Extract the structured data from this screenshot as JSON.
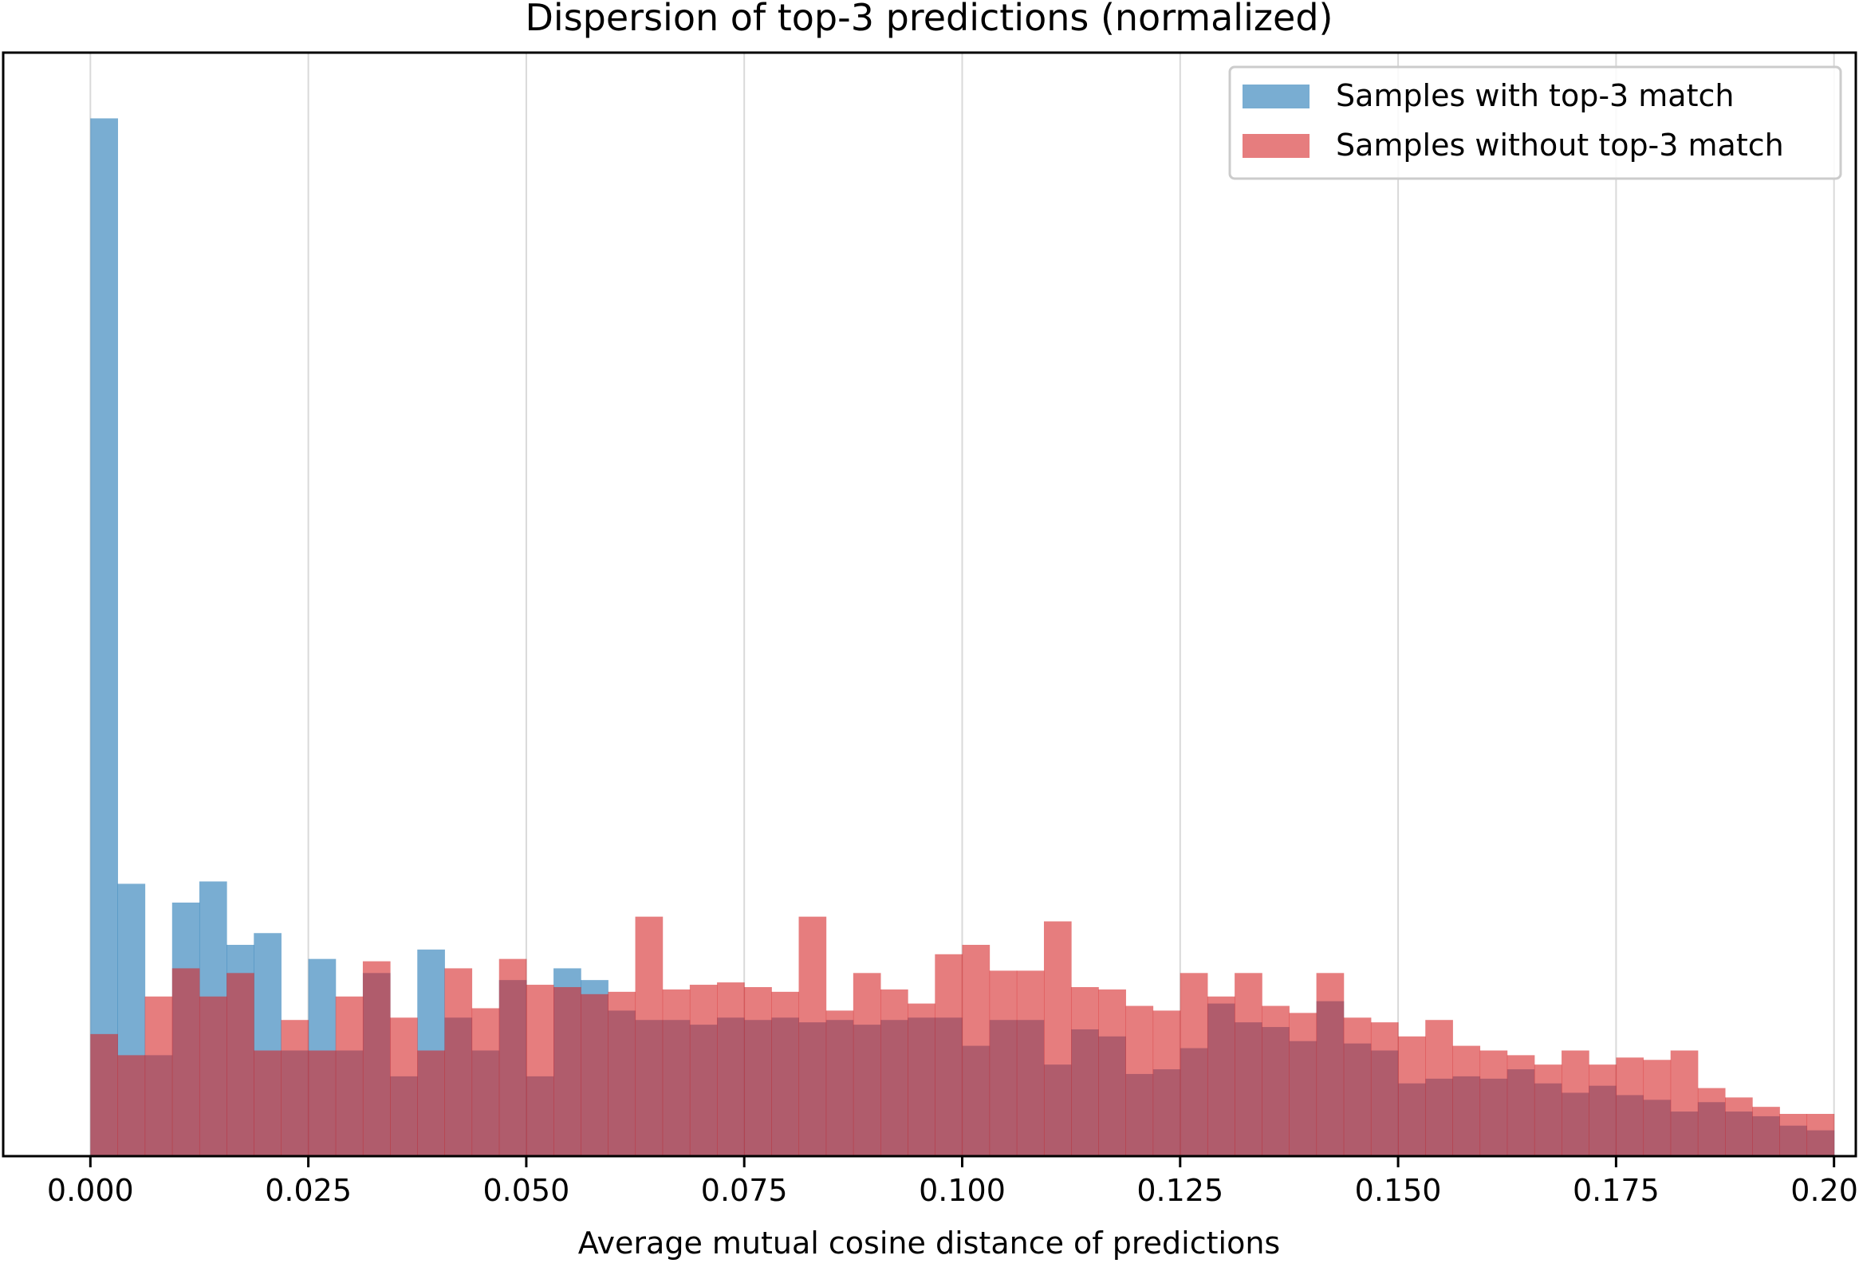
{
  "chart_data": {
    "type": "histogram",
    "title": "Dispersion of top-3 predictions (normalized)",
    "xlabel": "Average mutual cosine distance of predictions",
    "ylabel": "",
    "xlim": [
      -0.01,
      0.2025
    ],
    "ylim": [
      0,
      47
    ],
    "x_ticks": [
      "0.000",
      "0.025",
      "0.050",
      "0.075",
      "0.100",
      "0.125",
      "0.150",
      "0.175",
      "0.200"
    ],
    "y_ticks_visible": false,
    "grid": "vertical",
    "legend_position": "top-right",
    "bin_start": 0.0,
    "bin_width": 0.003125,
    "bins": 64,
    "series": [
      {
        "name": "Samples with top-3 match",
        "color": "#1f77b4",
        "values": [
          44.2,
          11.6,
          4.3,
          10.8,
          11.7,
          9.0,
          9.5,
          4.5,
          8.4,
          4.5,
          7.8,
          3.4,
          8.8,
          5.9,
          4.5,
          7.5,
          3.4,
          8.0,
          7.5,
          6.2,
          5.8,
          5.8,
          5.6,
          5.9,
          5.8,
          5.9,
          5.7,
          5.8,
          5.6,
          5.8,
          5.9,
          5.9,
          4.7,
          5.8,
          5.8,
          3.9,
          5.4,
          5.1,
          3.5,
          3.7,
          4.6,
          6.5,
          5.7,
          5.5,
          4.9,
          6.6,
          4.8,
          4.5,
          3.1,
          3.3,
          3.4,
          3.3,
          3.7,
          3.1,
          2.7,
          3.0,
          2.6,
          2.4,
          1.9,
          2.3,
          1.9,
          1.7,
          1.3,
          1.1
        ],
        "visual_height_with_overlap": [
          44.2,
          11.6,
          10.8,
          10.8,
          11.7,
          9.0,
          9.5,
          8.4,
          8.4,
          8.3,
          7.8,
          8.1,
          8.8,
          7.4,
          7.2,
          7.5,
          6.6,
          8.0,
          8.0,
          7.4,
          7.2,
          7.4,
          7.8,
          8.1,
          7.4,
          7.5,
          7.3,
          7.4,
          7.0,
          7.2,
          7.3,
          7.3,
          5.8,
          7.5,
          7.9,
          4.4,
          4.2,
          4.3,
          4.2,
          4.7,
          4.6,
          6.5,
          5.7,
          5.5,
          4.9,
          6.6,
          4.8,
          4.5,
          3.1,
          3.3,
          3.4,
          3.3,
          3.7,
          3.1,
          2.7,
          3.0,
          2.6,
          2.4,
          1.9,
          2.3,
          1.9,
          1.7,
          1.3,
          1.1
        ]
      },
      {
        "name": "Samples without top-3 match",
        "color": "#d62728",
        "values": [
          5.2,
          4.3,
          6.8,
          8.0,
          6.8,
          7.8,
          4.5,
          5.8,
          4.5,
          6.8,
          8.3,
          5.9,
          4.5,
          8.0,
          6.3,
          8.4,
          7.3,
          7.2,
          6.9,
          7.0,
          10.2,
          7.1,
          7.3,
          7.4,
          7.2,
          7.0,
          10.2,
          6.2,
          7.8,
          7.1,
          6.5,
          8.6,
          9.0,
          7.9,
          7.9,
          10.0,
          7.2,
          7.1,
          6.4,
          6.2,
          7.8,
          6.8,
          7.8,
          6.4,
          6.1,
          7.8,
          5.9,
          5.7,
          5.1,
          5.8,
          4.7,
          4.5,
          4.3,
          3.9,
          4.5,
          3.9,
          4.2,
          4.1,
          4.5,
          2.9,
          2.5,
          2.1,
          1.8,
          1.8
        ]
      }
    ]
  }
}
